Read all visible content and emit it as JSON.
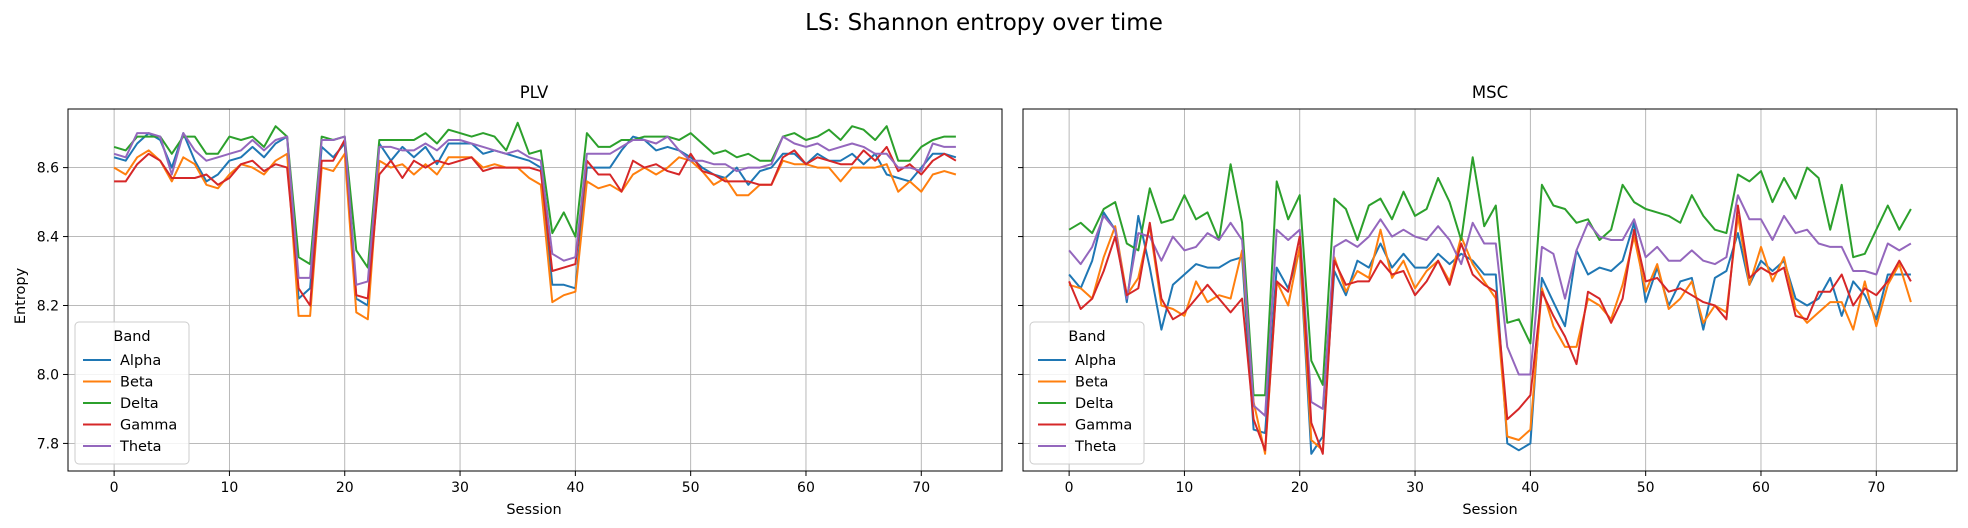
{
  "figure": {
    "title": "LS: Shannon entropy over time",
    "colors": {
      "Alpha": "#1f77b4",
      "Beta": "#ff7f0e",
      "Delta": "#2ca02c",
      "Gamma": "#d62728",
      "Theta": "#9467bd"
    }
  },
  "chart_data": [
    {
      "type": "line",
      "title": "PLV",
      "xlabel": "Session",
      "ylabel": "Entropy",
      "xlim": [
        -4,
        77
      ],
      "ylim": [
        7.72,
        8.77
      ],
      "xticks": [
        0,
        10,
        20,
        30,
        40,
        50,
        60,
        70
      ],
      "yticks": [
        7.8,
        8.0,
        8.2,
        8.4,
        8.6
      ],
      "ytick_labels": [
        "7.8",
        "8.0",
        "8.2",
        "8.4",
        "8.6"
      ],
      "grid": true,
      "legend": {
        "title": "Band",
        "placement": "lower-left"
      },
      "series": [
        {
          "name": "Alpha",
          "values": [
            8.63,
            8.62,
            8.67,
            8.7,
            8.68,
            8.6,
            8.7,
            8.62,
            8.56,
            8.58,
            8.62,
            8.63,
            8.66,
            8.63,
            8.67,
            8.69,
            8.22,
            8.25,
            8.66,
            8.63,
            8.67,
            8.22,
            8.2,
            8.67,
            8.62,
            8.66,
            8.63,
            8.66,
            8.61,
            8.67,
            8.67,
            8.67,
            8.64,
            8.65,
            8.64,
            8.63,
            8.62,
            8.6,
            8.26,
            8.26,
            8.25,
            8.6,
            8.6,
            8.6,
            8.65,
            8.69,
            8.68,
            8.65,
            8.66,
            8.65,
            8.63,
            8.6,
            8.58,
            8.57,
            8.6,
            8.55,
            8.59,
            8.6,
            8.64,
            8.64,
            8.61,
            8.64,
            8.62,
            8.62,
            8.64,
            8.61,
            8.64,
            8.58,
            8.57,
            8.56,
            8.6,
            8.64,
            8.64,
            8.63
          ]
        },
        {
          "name": "Beta",
          "values": [
            8.6,
            8.58,
            8.63,
            8.65,
            8.62,
            8.56,
            8.63,
            8.61,
            8.55,
            8.54,
            8.58,
            8.61,
            8.6,
            8.58,
            8.62,
            8.64,
            8.17,
            8.17,
            8.6,
            8.59,
            8.64,
            8.18,
            8.16,
            8.62,
            8.6,
            8.61,
            8.58,
            8.61,
            8.58,
            8.63,
            8.63,
            8.63,
            8.6,
            8.61,
            8.6,
            8.6,
            8.57,
            8.55,
            8.21,
            8.23,
            8.24,
            8.56,
            8.54,
            8.55,
            8.53,
            8.58,
            8.6,
            8.58,
            8.6,
            8.63,
            8.62,
            8.59,
            8.55,
            8.57,
            8.52,
            8.52,
            8.55,
            8.55,
            8.62,
            8.61,
            8.61,
            8.6,
            8.6,
            8.56,
            8.6,
            8.6,
            8.6,
            8.61,
            8.53,
            8.56,
            8.53,
            8.58,
            8.59,
            8.58
          ]
        },
        {
          "name": "Delta",
          "values": [
            8.66,
            8.65,
            8.69,
            8.69,
            8.69,
            8.64,
            8.69,
            8.69,
            8.64,
            8.64,
            8.69,
            8.68,
            8.69,
            8.66,
            8.72,
            8.69,
            8.34,
            8.32,
            8.69,
            8.68,
            8.69,
            8.36,
            8.31,
            8.68,
            8.68,
            8.68,
            8.68,
            8.7,
            8.67,
            8.71,
            8.7,
            8.69,
            8.7,
            8.69,
            8.65,
            8.73,
            8.64,
            8.65,
            8.41,
            8.47,
            8.4,
            8.7,
            8.66,
            8.66,
            8.68,
            8.68,
            8.69,
            8.69,
            8.69,
            8.68,
            8.7,
            8.67,
            8.64,
            8.65,
            8.63,
            8.64,
            8.62,
            8.62,
            8.69,
            8.7,
            8.68,
            8.69,
            8.71,
            8.68,
            8.72,
            8.71,
            8.68,
            8.72,
            8.62,
            8.62,
            8.66,
            8.68,
            8.69,
            8.69
          ]
        },
        {
          "name": "Gamma",
          "values": [
            8.56,
            8.56,
            8.61,
            8.64,
            8.62,
            8.57,
            8.57,
            8.57,
            8.58,
            8.55,
            8.57,
            8.61,
            8.62,
            8.59,
            8.61,
            8.6,
            8.25,
            8.2,
            8.62,
            8.62,
            8.68,
            8.23,
            8.22,
            8.58,
            8.62,
            8.57,
            8.62,
            8.6,
            8.62,
            8.61,
            8.62,
            8.63,
            8.59,
            8.6,
            8.6,
            8.6,
            8.6,
            8.59,
            8.3,
            8.31,
            8.32,
            8.62,
            8.58,
            8.58,
            8.53,
            8.62,
            8.6,
            8.61,
            8.59,
            8.58,
            8.64,
            8.59,
            8.58,
            8.56,
            8.56,
            8.56,
            8.55,
            8.55,
            8.63,
            8.65,
            8.61,
            8.63,
            8.62,
            8.61,
            8.61,
            8.65,
            8.62,
            8.66,
            8.59,
            8.61,
            8.58,
            8.62,
            8.64,
            8.62
          ]
        },
        {
          "name": "Theta",
          "values": [
            8.64,
            8.63,
            8.7,
            8.7,
            8.69,
            8.58,
            8.7,
            8.65,
            8.62,
            8.63,
            8.64,
            8.65,
            8.68,
            8.65,
            8.68,
            8.69,
            8.28,
            8.28,
            8.68,
            8.68,
            8.69,
            8.26,
            8.27,
            8.66,
            8.66,
            8.65,
            8.65,
            8.67,
            8.65,
            8.68,
            8.68,
            8.67,
            8.66,
            8.65,
            8.64,
            8.65,
            8.63,
            8.62,
            8.35,
            8.33,
            8.34,
            8.64,
            8.64,
            8.64,
            8.66,
            8.68,
            8.68,
            8.67,
            8.69,
            8.65,
            8.62,
            8.62,
            8.61,
            8.61,
            8.59,
            8.6,
            8.6,
            8.61,
            8.69,
            8.67,
            8.66,
            8.67,
            8.65,
            8.66,
            8.67,
            8.66,
            8.64,
            8.64,
            8.6,
            8.6,
            8.59,
            8.67,
            8.66,
            8.66
          ]
        }
      ]
    },
    {
      "type": "line",
      "title": "MSC",
      "xlabel": "Session",
      "ylabel": "",
      "xlim": [
        -4,
        77
      ],
      "ylim": [
        7.72,
        8.77
      ],
      "xticks": [
        0,
        10,
        20,
        30,
        40,
        50,
        60,
        70
      ],
      "yticks": [
        7.8,
        8.0,
        8.2,
        8.4,
        8.6
      ],
      "ytick_labels": [
        "",
        "",
        "",
        "",
        ""
      ],
      "grid": true,
      "legend": {
        "title": "Band",
        "placement": "lower-left"
      },
      "series": [
        {
          "name": "Alpha",
          "values": [
            8.29,
            8.25,
            8.33,
            8.47,
            8.42,
            8.21,
            8.46,
            8.31,
            8.13,
            8.26,
            8.29,
            8.32,
            8.31,
            8.31,
            8.33,
            8.34,
            7.84,
            7.83,
            8.31,
            8.25,
            8.36,
            7.77,
            7.82,
            8.3,
            8.23,
            8.33,
            8.31,
            8.38,
            8.31,
            8.35,
            8.31,
            8.31,
            8.35,
            8.32,
            8.35,
            8.33,
            8.29,
            8.29,
            7.8,
            7.78,
            7.8,
            8.28,
            8.21,
            8.14,
            8.36,
            8.29,
            8.31,
            8.3,
            8.33,
            8.44,
            8.21,
            8.31,
            8.2,
            8.27,
            8.28,
            8.13,
            8.28,
            8.3,
            8.41,
            8.26,
            8.33,
            8.3,
            8.33,
            8.22,
            8.2,
            8.22,
            8.28,
            8.17,
            8.27,
            8.23,
            8.16,
            8.29,
            8.29,
            8.29
          ]
        },
        {
          "name": "Beta",
          "values": [
            8.26,
            8.25,
            8.22,
            8.34,
            8.43,
            8.23,
            8.28,
            8.43,
            8.2,
            8.19,
            8.17,
            8.27,
            8.21,
            8.23,
            8.22,
            8.36,
            7.92,
            7.77,
            8.27,
            8.2,
            8.37,
            7.81,
            7.78,
            8.34,
            8.24,
            8.3,
            8.28,
            8.42,
            8.28,
            8.33,
            8.25,
            8.3,
            8.33,
            8.27,
            8.4,
            8.32,
            8.27,
            8.22,
            7.82,
            7.81,
            7.84,
            8.25,
            8.14,
            8.08,
            8.08,
            8.22,
            8.2,
            8.16,
            8.26,
            8.4,
            8.24,
            8.32,
            8.19,
            8.22,
            8.27,
            8.15,
            8.2,
            8.18,
            8.46,
            8.26,
            8.37,
            8.27,
            8.34,
            8.19,
            8.15,
            8.18,
            8.21,
            8.21,
            8.13,
            8.27,
            8.14,
            8.26,
            8.32,
            8.21
          ]
        },
        {
          "name": "Delta",
          "values": [
            8.42,
            8.44,
            8.41,
            8.48,
            8.5,
            8.38,
            8.36,
            8.54,
            8.44,
            8.45,
            8.52,
            8.45,
            8.47,
            8.39,
            8.61,
            8.44,
            7.94,
            7.94,
            8.56,
            8.45,
            8.52,
            8.04,
            7.97,
            8.51,
            8.48,
            8.39,
            8.49,
            8.51,
            8.45,
            8.53,
            8.46,
            8.48,
            8.57,
            8.5,
            8.39,
            8.63,
            8.43,
            8.49,
            8.15,
            8.16,
            8.09,
            8.55,
            8.49,
            8.48,
            8.44,
            8.45,
            8.39,
            8.42,
            8.55,
            8.5,
            8.48,
            8.47,
            8.46,
            8.44,
            8.52,
            8.46,
            8.42,
            8.41,
            8.58,
            8.56,
            8.59,
            8.5,
            8.57,
            8.51,
            8.6,
            8.57,
            8.42,
            8.55,
            8.34,
            8.35,
            8.42,
            8.49,
            8.42,
            8.48
          ]
        },
        {
          "name": "Theta",
          "values": [
            8.36,
            8.32,
            8.37,
            8.46,
            8.42,
            8.22,
            8.41,
            8.4,
            8.33,
            8.4,
            8.36,
            8.37,
            8.41,
            8.39,
            8.44,
            8.39,
            7.91,
            7.88,
            8.42,
            8.39,
            8.42,
            7.92,
            7.9,
            8.37,
            8.39,
            8.37,
            8.4,
            8.45,
            8.4,
            8.42,
            8.4,
            8.39,
            8.43,
            8.39,
            8.32,
            8.44,
            8.38,
            8.38,
            8.08,
            8.0,
            8.0,
            8.37,
            8.35,
            8.22,
            8.36,
            8.44,
            8.4,
            8.39,
            8.39,
            8.45,
            8.34,
            8.37,
            8.33,
            8.33,
            8.36,
            8.33,
            8.32,
            8.34,
            8.52,
            8.45,
            8.45,
            8.39,
            8.46,
            8.41,
            8.42,
            8.38,
            8.37,
            8.37,
            8.3,
            8.3,
            8.29,
            8.38,
            8.36,
            8.38
          ]
        },
        {
          "name": "Gamma",
          "values": [
            8.27,
            8.19,
            8.22,
            8.3,
            8.4,
            8.23,
            8.25,
            8.44,
            8.22,
            8.16,
            8.18,
            8.22,
            8.26,
            8.22,
            8.18,
            8.22,
            7.87,
            7.78,
            8.27,
            8.24,
            8.4,
            7.86,
            7.77,
            8.33,
            8.26,
            8.27,
            8.27,
            8.33,
            8.29,
            8.3,
            8.23,
            8.27,
            8.33,
            8.26,
            8.38,
            8.29,
            8.26,
            8.24,
            7.87,
            7.9,
            7.94,
            8.24,
            8.17,
            8.11,
            8.03,
            8.24,
            8.22,
            8.15,
            8.22,
            8.42,
            8.27,
            8.28,
            8.24,
            8.25,
            8.23,
            8.21,
            8.2,
            8.16,
            8.49,
            8.28,
            8.31,
            8.29,
            8.31,
            8.17,
            8.16,
            8.24,
            8.24,
            8.29,
            8.2,
            8.25,
            8.23,
            8.27,
            8.33,
            8.27
          ]
        }
      ]
    }
  ]
}
